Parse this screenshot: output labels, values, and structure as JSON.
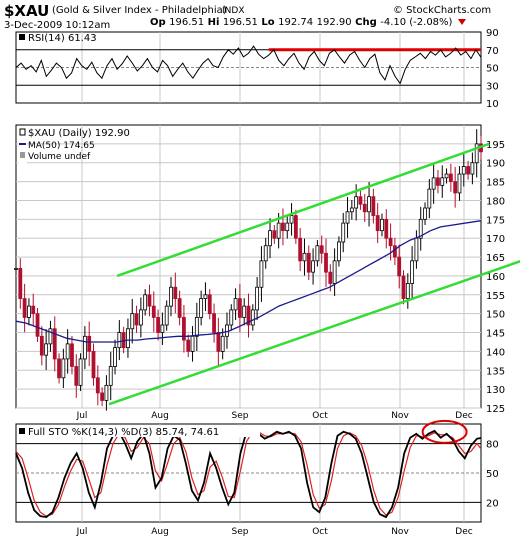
{
  "header": {
    "symbol": "$XAU",
    "name": "(Gold & Silver Index - Philadelphia)",
    "exchange": "INDX",
    "date": "3-Dec-2009 10:12am",
    "open_label": "Op",
    "open": "196.51",
    "high_label": "Hi",
    "high": "196.51",
    "low_label": "Lo",
    "low": "192.74",
    "close": "192.90",
    "chg_label": "Chg",
    "chg": "-4.10 (-2.08%)",
    "logo": "© StockCharts.com"
  },
  "colors": {
    "price_up": "#000000",
    "price_down": "#b01030",
    "ma": "#1a1a8c",
    "channel": "#33dd33",
    "rsi_line": "#000000",
    "rsi_70_line": "#dd0000",
    "sto_k": "#000000",
    "sto_d": "#dd2222",
    "annotation_circle": "#dd0000",
    "grid": "#c8c8c8"
  },
  "chart_data": [
    {
      "type": "line",
      "panel": "rsi",
      "legend": "RSI(14) 61.43",
      "ylim": [
        10,
        90
      ],
      "yticks": [
        10,
        30,
        50,
        70,
        90
      ],
      "reference_lines": [
        30,
        50,
        70
      ],
      "x": [
        0,
        5,
        10,
        15,
        20,
        25,
        30,
        35,
        40,
        45,
        50,
        55,
        60,
        65,
        70,
        75,
        80,
        85,
        90,
        95,
        100,
        105,
        110,
        115,
        120,
        125,
        130,
        135,
        140,
        145,
        150,
        155,
        160,
        165,
        170,
        175,
        180,
        185,
        190,
        195,
        200,
        205,
        210,
        215,
        220,
        225,
        230,
        235,
        240,
        245,
        250,
        255,
        260,
        265,
        270,
        275,
        280,
        285,
        290,
        295,
        300,
        305,
        310,
        315,
        320,
        325,
        330,
        335,
        340,
        345,
        350,
        355,
        360,
        365,
        370,
        375,
        380,
        385,
        390,
        395,
        400,
        405,
        410,
        415,
        420,
        425,
        430,
        435,
        440,
        445,
        450,
        455,
        460
      ],
      "values": [
        50,
        55,
        48,
        52,
        45,
        58,
        40,
        47,
        55,
        50,
        38,
        44,
        60,
        52,
        48,
        56,
        44,
        38,
        52,
        60,
        48,
        54,
        63,
        55,
        46,
        52,
        60,
        50,
        45,
        58,
        52,
        40,
        48,
        55,
        45,
        38,
        47,
        55,
        60,
        52,
        50,
        62,
        70,
        65,
        72,
        62,
        66,
        74,
        65,
        60,
        64,
        70,
        58,
        52,
        60,
        66,
        55,
        48,
        62,
        68,
        58,
        52,
        66,
        70,
        62,
        55,
        64,
        68,
        58,
        50,
        60,
        65,
        44,
        36,
        52,
        40,
        32,
        48,
        58,
        62,
        66,
        60,
        68,
        64,
        70,
        62,
        66,
        72,
        64,
        68,
        60,
        70,
        61.43
      ],
      "highlight_line": {
        "y": 70,
        "x_from": 250,
        "x_to": 460
      }
    },
    {
      "type": "candlestick",
      "panel": "price",
      "legend": [
        "$XAU (Daily) 192.90",
        "MA(50) 174.65",
        "Volume undef"
      ],
      "ylim": [
        125,
        200
      ],
      "yticks": [
        125,
        130,
        135,
        140,
        145,
        150,
        155,
        160,
        165,
        170,
        175,
        180,
        185,
        190,
        195
      ],
      "xticks": [
        {
          "label": "Jul",
          "x": 66
        },
        {
          "label": "Aug",
          "x": 144
        },
        {
          "label": "Sep",
          "x": 224
        },
        {
          "label": "Oct",
          "x": 304
        },
        {
          "label": "Nov",
          "x": 384
        },
        {
          "label": "Dec",
          "x": 448
        }
      ],
      "close": [
        162,
        154,
        149,
        152,
        150,
        144,
        139,
        142,
        146,
        138,
        133,
        138,
        142,
        136,
        131,
        138,
        144,
        140,
        133,
        129,
        127,
        131,
        136,
        141,
        145,
        141,
        146,
        150,
        147,
        151,
        155,
        152,
        149,
        145,
        147,
        152,
        157,
        154,
        149,
        143,
        140,
        144,
        149,
        154,
        155,
        150,
        145,
        140,
        144,
        147,
        151,
        154,
        149,
        152,
        147,
        151,
        157,
        164,
        168,
        172,
        170,
        174,
        172,
        174,
        176,
        170,
        164,
        166,
        161,
        164,
        168,
        166,
        161,
        158,
        164,
        169,
        174,
        177,
        178,
        181,
        179,
        177,
        181,
        176,
        172,
        175,
        170,
        168,
        165,
        160,
        154,
        158,
        164,
        170,
        175,
        178,
        183,
        186,
        184,
        186,
        187,
        185,
        182,
        187,
        189,
        187,
        190,
        195,
        192.9
      ],
      "ma50": [
        148,
        147.5,
        146.5,
        145.5,
        144.5,
        143.5,
        143,
        142.5,
        142.5,
        142.5,
        142.5,
        143,
        143,
        143.3,
        143.5,
        143.8,
        144,
        144,
        144.3,
        144.5,
        144.8,
        145.3,
        146.5,
        147.8,
        149,
        150.5,
        152,
        153,
        154,
        155,
        156,
        157,
        158.5,
        160,
        161.5,
        163,
        164.5,
        166,
        168,
        169.5,
        170.5,
        172,
        173,
        174.65
      ],
      "ma50_x": [
        0,
        10,
        20,
        30,
        40,
        50,
        60,
        70,
        80,
        90,
        100,
        110,
        120,
        130,
        140,
        150,
        160,
        170,
        180,
        190,
        200,
        210,
        220,
        230,
        240,
        250,
        260,
        270,
        280,
        290,
        300,
        310,
        320,
        330,
        340,
        350,
        360,
        370,
        380,
        390,
        400,
        410,
        420,
        460
      ],
      "trend_channel": {
        "upper": [
          {
            "x": 100,
            "y": 160
          },
          {
            "x": 468,
            "y": 195
          }
        ],
        "lower": [
          {
            "x": 92,
            "y": 126
          },
          {
            "x": 500,
            "y": 164
          }
        ]
      }
    },
    {
      "type": "line",
      "panel": "stochastic",
      "legend": [
        "Full STO %K(14,3) %D(3) 85.74, 74.61"
      ],
      "ylim": [
        0,
        100
      ],
      "yticks": [
        20,
        50,
        80
      ],
      "reference_lines": [
        20,
        50,
        80
      ],
      "xticks": [
        {
          "label": "Jul",
          "x": 66
        },
        {
          "label": "Aug",
          "x": 144
        },
        {
          "label": "Sep",
          "x": 224
        },
        {
          "label": "Oct",
          "x": 304
        },
        {
          "label": "Nov",
          "x": 384
        },
        {
          "label": "Dec",
          "x": 448
        }
      ],
      "x": [
        0,
        6,
        12,
        18,
        24,
        30,
        36,
        42,
        48,
        54,
        60,
        66,
        72,
        78,
        84,
        90,
        96,
        102,
        108,
        114,
        120,
        126,
        132,
        138,
        144,
        150,
        156,
        162,
        168,
        174,
        180,
        186,
        192,
        198,
        204,
        210,
        216,
        222,
        228,
        234,
        240,
        246,
        252,
        258,
        264,
        270,
        276,
        282,
        288,
        294,
        300,
        306,
        312,
        318,
        324,
        330,
        336,
        342,
        348,
        354,
        360,
        366,
        372,
        378,
        384,
        390,
        396,
        402,
        408,
        414,
        420,
        426,
        432,
        438,
        444,
        450,
        456,
        460
      ],
      "k": [
        70,
        55,
        30,
        12,
        6,
        5,
        10,
        25,
        45,
        60,
        70,
        55,
        30,
        15,
        40,
        75,
        88,
        92,
        80,
        65,
        82,
        90,
        70,
        35,
        45,
        75,
        88,
        84,
        60,
        32,
        22,
        40,
        70,
        55,
        35,
        18,
        30,
        70,
        92,
        95,
        90,
        85,
        88,
        92,
        90,
        92,
        88,
        75,
        40,
        15,
        10,
        25,
        60,
        88,
        92,
        90,
        85,
        70,
        45,
        20,
        8,
        5,
        15,
        35,
        70,
        86,
        90,
        85,
        90,
        93,
        86,
        90,
        84,
        72,
        65,
        78,
        85,
        85.74
      ],
      "d": [
        72,
        65,
        45,
        22,
        10,
        6,
        8,
        18,
        36,
        52,
        64,
        62,
        44,
        25,
        30,
        58,
        80,
        90,
        86,
        72,
        76,
        86,
        80,
        52,
        42,
        60,
        80,
        86,
        72,
        45,
        28,
        32,
        56,
        62,
        46,
        26,
        25,
        52,
        82,
        92,
        92,
        88,
        87,
        90,
        90,
        91,
        90,
        82,
        58,
        28,
        14,
        18,
        42,
        75,
        88,
        91,
        88,
        78,
        58,
        32,
        14,
        7,
        10,
        25,
        52,
        76,
        88,
        87,
        88,
        91,
        89,
        89,
        86,
        78,
        70,
        72,
        80,
        74.61
      ],
      "annotation": "circle around the Nov–Dec overbought peak"
    }
  ]
}
